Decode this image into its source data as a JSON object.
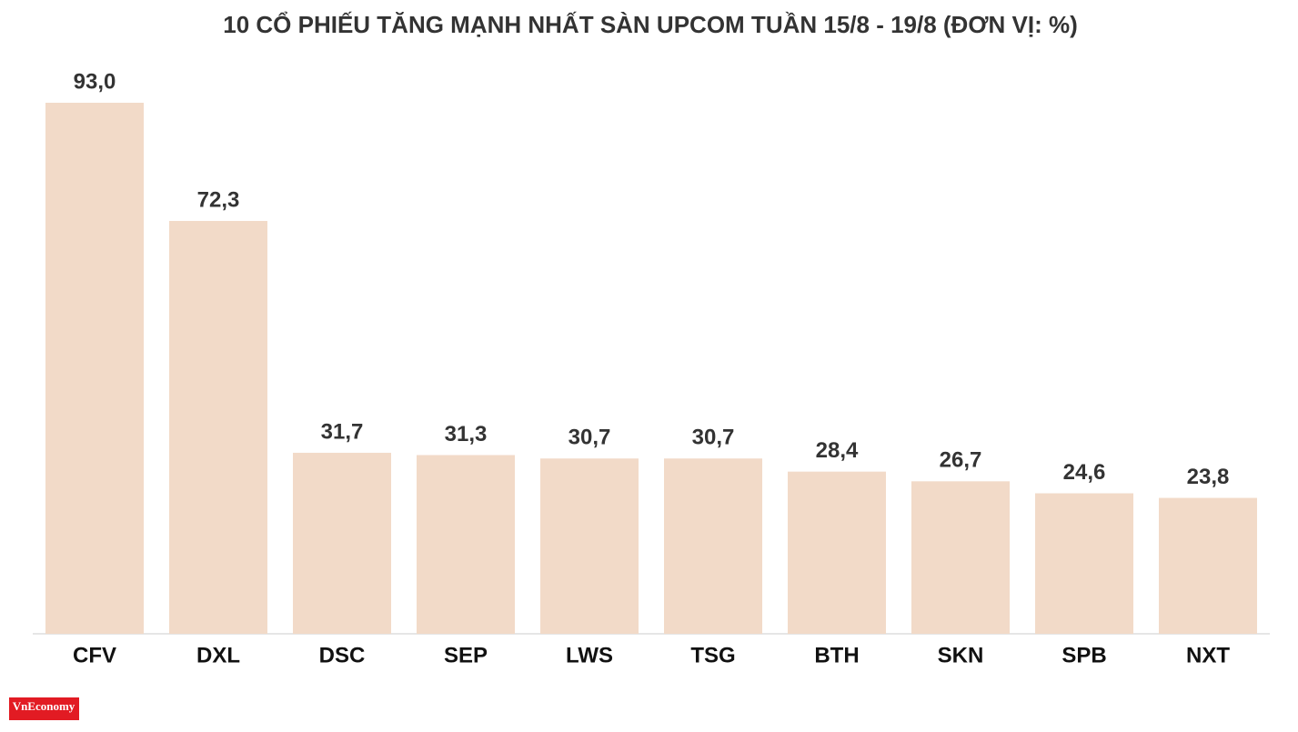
{
  "chart_data": {
    "type": "bar",
    "title": "10 CỔ PHIẾU TĂNG MẠNH NHẤT SÀN UPCOM TUẦN 15/8 - 19/8 (ĐƠN VỊ: %)",
    "categories": [
      "CFV",
      "DXL",
      "DSC",
      "SEP",
      "LWS",
      "TSG",
      "BTH",
      "SKN",
      "SPB",
      "NXT"
    ],
    "values": [
      93.0,
      72.3,
      31.7,
      31.3,
      30.7,
      30.7,
      28.4,
      26.7,
      24.6,
      23.8
    ],
    "value_labels": [
      "93,0",
      "72,3",
      "31,7",
      "31,3",
      "30,7",
      "30,7",
      "28,4",
      "26,7",
      "24,6",
      "23,8"
    ],
    "color": "#f2dac8",
    "ylim": [
      0,
      93
    ]
  },
  "logo": "VnEconomy"
}
